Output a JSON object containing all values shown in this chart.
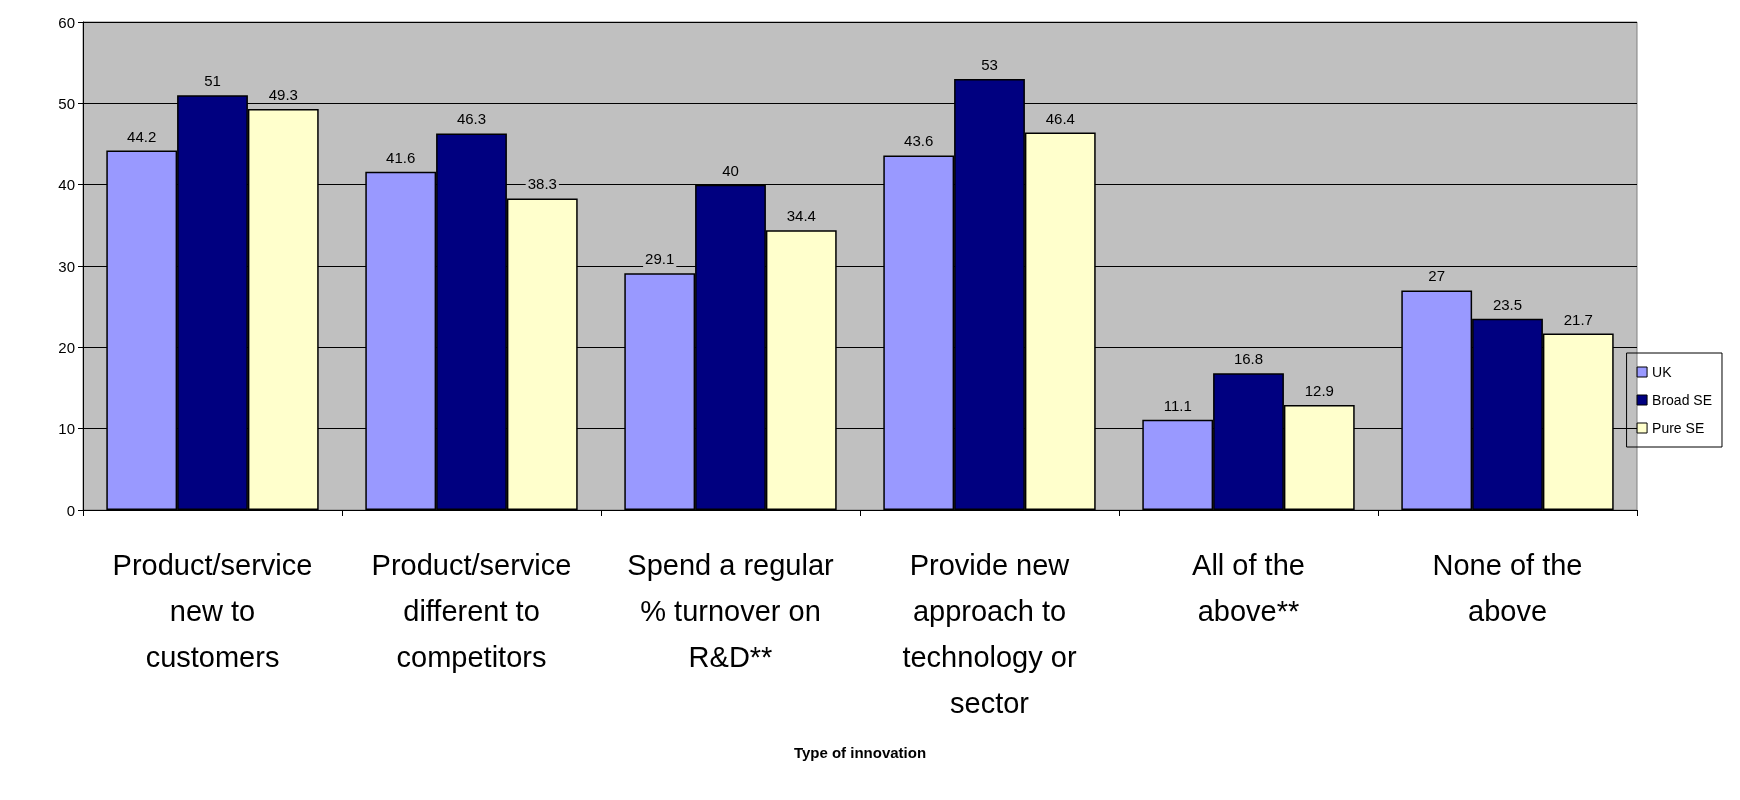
{
  "chart_data": {
    "type": "bar",
    "xlabel": "Type of innovation",
    "categories": [
      "Product/service new to customers",
      "Product/service different to competitors",
      "Spend a regular % turnover on R&D**",
      "Provide new approach to technology or sector",
      "All of the above**",
      "None of the above"
    ],
    "series": [
      {
        "name": "UK",
        "color": "#9999ff",
        "values": [
          44.2,
          41.6,
          29.1,
          43.6,
          11.1,
          27
        ]
      },
      {
        "name": "Broad SE",
        "color": "#000080",
        "values": [
          51,
          46.3,
          40,
          53,
          16.8,
          23.5
        ]
      },
      {
        "name": "Pure SE",
        "color": "#ffffcc",
        "values": [
          49.3,
          38.3,
          34.4,
          46.4,
          12.9,
          21.7
        ]
      }
    ],
    "ylim": [
      0,
      60
    ],
    "yticks": [
      0,
      10,
      20,
      30,
      40,
      50,
      60
    ],
    "grid": "y",
    "legend": "right",
    "data_labels": true
  }
}
